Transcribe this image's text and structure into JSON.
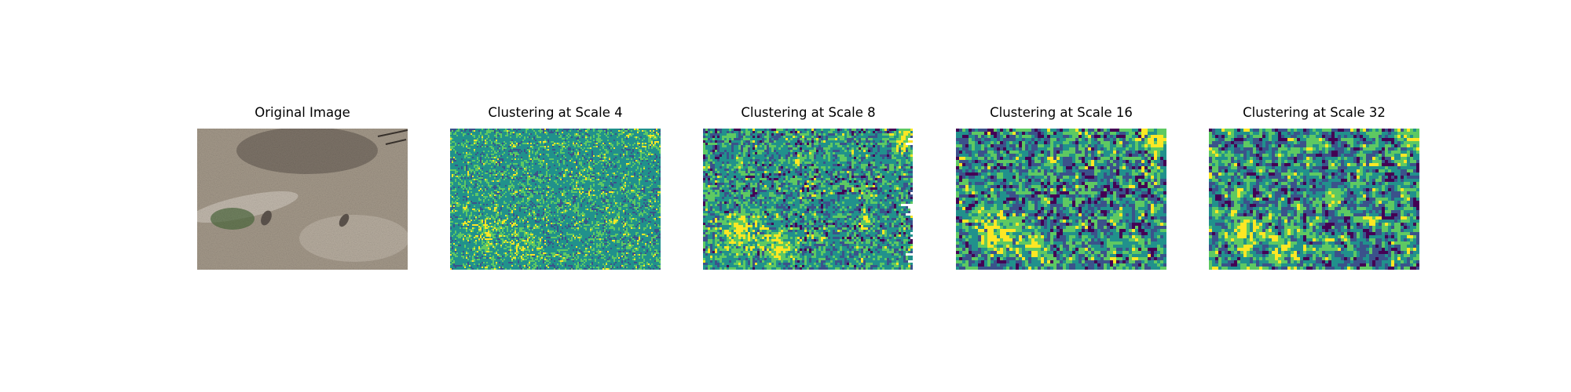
{
  "figure": {
    "panels": [
      {
        "title": "Original Image",
        "kind": "photo"
      },
      {
        "title": "Clustering at Scale 4",
        "kind": "clusters"
      },
      {
        "title": "Clustering at Scale 8",
        "kind": "clusters"
      },
      {
        "title": "Clustering at Scale 16",
        "kind": "clusters"
      },
      {
        "title": "Clustering at Scale 32",
        "kind": "clusters"
      }
    ],
    "colors": {
      "viridis": [
        "#440154",
        "#3b528b",
        "#21918c",
        "#5ec962",
        "#fde725"
      ],
      "photo_ground": "#a59a8b",
      "photo_dark": "#5f564f",
      "photo_light": "#cbc2b6",
      "photo_moss": "#4f6b3f"
    }
  }
}
